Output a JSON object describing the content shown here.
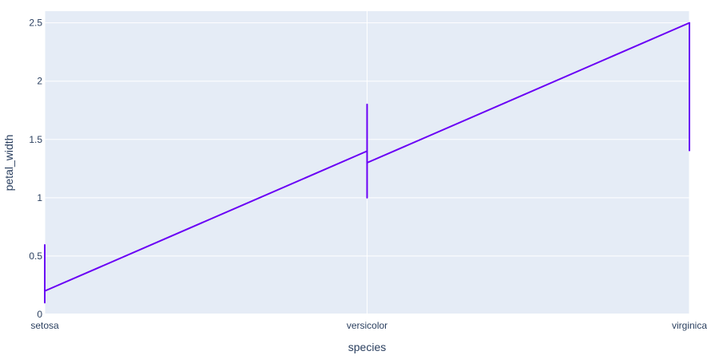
{
  "chart_data": {
    "type": "line",
    "xlabel": "species",
    "ylabel": "petal_width",
    "categories": [
      "setosa",
      "versicolor",
      "virginica"
    ],
    "ylim": [
      0,
      2.6
    ],
    "yticks": [
      0,
      0.5,
      1,
      1.5,
      2,
      2.5
    ],
    "ytick_labels": [
      "0",
      "0.5",
      "1",
      "1.5",
      "2",
      "2.5"
    ],
    "grid": true,
    "colors": {
      "line": "#6a00f5",
      "plot_bg": "#e5ecf6",
      "grid": "#ffffff",
      "text": "#2a3f5f"
    },
    "series": [
      {
        "points": [
          {
            "x": "setosa",
            "y": 0.6
          },
          {
            "x": "setosa",
            "y": 0.1
          },
          {
            "x": "setosa",
            "y": 0.2
          },
          {
            "x": "versicolor",
            "y": 1.4
          },
          {
            "x": "versicolor",
            "y": 1.8
          },
          {
            "x": "versicolor",
            "y": 1.0
          },
          {
            "x": "versicolor",
            "y": 1.3
          },
          {
            "x": "virginica",
            "y": 2.5
          },
          {
            "x": "virginica",
            "y": 1.4
          }
        ]
      }
    ]
  }
}
